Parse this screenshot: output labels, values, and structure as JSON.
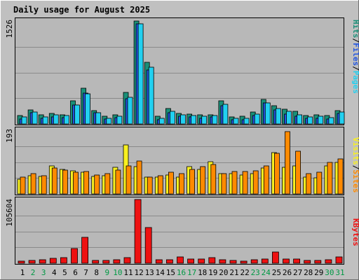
{
  "title": "Daily usage for August 2025",
  "colors": {
    "hits": "#1a8f78",
    "files": "#2255e0",
    "pages": "#22d0f0",
    "visits": "#f8f020",
    "sites": "#ff8a00",
    "kbytes": "#ee1111",
    "weekend": "#009944",
    "weekday": "#000000",
    "title": "#0000cc"
  },
  "legend": {
    "top": {
      "pages": "Pages",
      "sep1": "/",
      "files": "Files",
      "sep2": "/",
      "hits": "Hits"
    },
    "middle": {
      "sites": "Sites",
      "sep": "/",
      "visits": "Visits"
    },
    "bottom": {
      "kbytes": "KBytes"
    }
  },
  "chart_data": [
    {
      "type": "bar",
      "panel": "hits-files-pages",
      "ymax_label": "1526",
      "ylim": [
        0,
        1526
      ],
      "categories": [
        "1",
        "2",
        "3",
        "4",
        "5",
        "6",
        "7",
        "8",
        "9",
        "10",
        "11",
        "12",
        "13",
        "14",
        "15",
        "16",
        "17",
        "18",
        "19",
        "20",
        "21",
        "22",
        "23",
        "24",
        "25",
        "26",
        "27",
        "28",
        "29",
        "30",
        "31"
      ],
      "weekend_days": [
        "2",
        "3",
        "9",
        "10",
        "16",
        "17",
        "23",
        "24",
        "30",
        "31"
      ],
      "series": [
        {
          "name": "Hits",
          "values": [
            120,
            210,
            130,
            160,
            140,
            345,
            525,
            200,
            110,
            140,
            465,
            1526,
            915,
            110,
            230,
            160,
            145,
            130,
            140,
            340,
            105,
            110,
            175,
            365,
            270,
            220,
            185,
            125,
            130,
            120,
            195
          ]
        },
        {
          "name": "Files",
          "values": [
            75,
            165,
            80,
            105,
            95,
            280,
            460,
            165,
            70,
            90,
            375,
            1480,
            795,
            65,
            170,
            115,
            100,
            85,
            100,
            275,
            65,
            65,
            125,
            310,
            210,
            150,
            115,
            80,
            85,
            70,
            160
          ]
        },
        {
          "name": "Pages",
          "values": [
            100,
            175,
            100,
            130,
            120,
            280,
            445,
            170,
            85,
            115,
            390,
            1480,
            840,
            80,
            190,
            130,
            125,
            110,
            125,
            295,
            85,
            85,
            145,
            310,
            230,
            185,
            135,
            100,
            110,
            95,
            175
          ]
        }
      ]
    },
    {
      "type": "bar",
      "panel": "visits-sites",
      "ymax_label": "193",
      "ylim": [
        0,
        193
      ],
      "categories": [
        "1",
        "2",
        "3",
        "4",
        "5",
        "6",
        "7",
        "8",
        "9",
        "10",
        "11",
        "12",
        "13",
        "14",
        "15",
        "16",
        "17",
        "18",
        "19",
        "20",
        "21",
        "22",
        "23",
        "24",
        "25",
        "26",
        "27",
        "28",
        "29",
        "30",
        "31"
      ],
      "series": [
        {
          "name": "Visits",
          "values": [
            45,
            55,
            52,
            85,
            75,
            70,
            65,
            52,
            55,
            80,
            148,
            82,
            50,
            50,
            58,
            50,
            82,
            75,
            98,
            62,
            62,
            58,
            62,
            78,
            125,
            80,
            85,
            50,
            48,
            85,
            95
          ]
        },
        {
          "name": "Sites",
          "values": [
            50,
            62,
            55,
            78,
            72,
            65,
            68,
            58,
            62,
            72,
            85,
            100,
            50,
            55,
            65,
            62,
            75,
            82,
            90,
            62,
            68,
            68,
            70,
            85,
            122,
            188,
            130,
            62,
            65,
            95,
            105
          ]
        }
      ]
    },
    {
      "type": "bar",
      "panel": "kbytes",
      "ymax_label": "105604",
      "ylim": [
        0,
        105604
      ],
      "categories": [
        "1",
        "2",
        "3",
        "4",
        "5",
        "6",
        "7",
        "8",
        "9",
        "10",
        "11",
        "12",
        "13",
        "14",
        "15",
        "16",
        "17",
        "18",
        "19",
        "20",
        "21",
        "22",
        "23",
        "24",
        "25",
        "26",
        "27",
        "28",
        "29",
        "30",
        "31"
      ],
      "series": [
        {
          "name": "KBytes",
          "values": [
            4000,
            4300,
            6000,
            8500,
            9000,
            24500,
            42500,
            5000,
            5000,
            6300,
            9500,
            105604,
            59000,
            5300,
            6300,
            10200,
            7000,
            7200,
            9200,
            6000,
            4200,
            4000,
            5800,
            6400,
            18500,
            6500,
            6500,
            5200,
            5000,
            5500,
            11000
          ]
        }
      ]
    }
  ]
}
